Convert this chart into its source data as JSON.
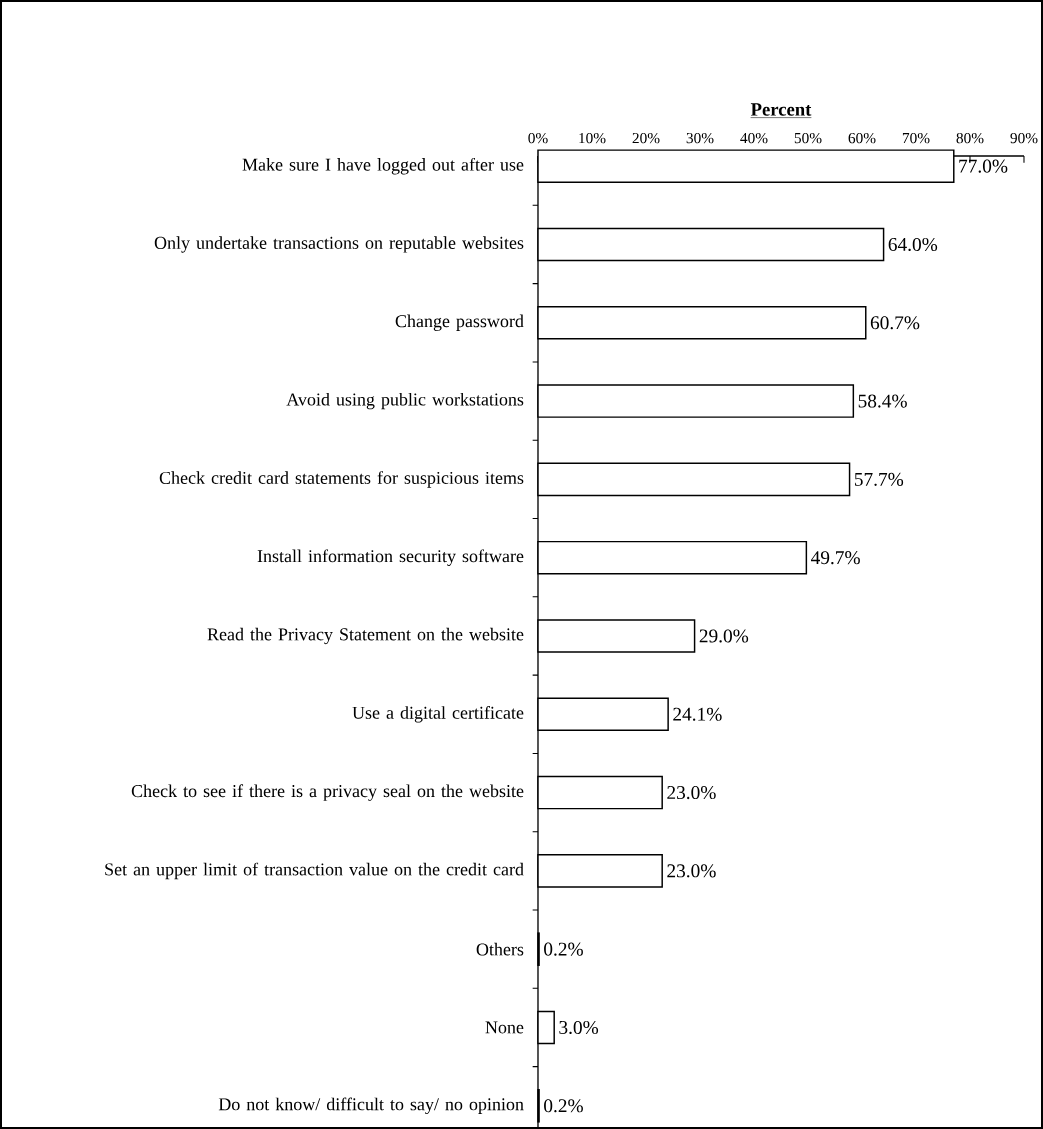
{
  "chart_data": {
    "type": "bar",
    "orientation": "horizontal",
    "xlabel": "**Percent**",
    "categories": [
      "Make sure I have logged out after use",
      "Only undertake transactions on reputable websites",
      "Change password",
      "Avoid using public workstations",
      "Check credit card statements for suspicious items",
      "Install information security software",
      "Read the Privacy Statement on the website",
      "Use a digital certificate",
      "Check to see if there is a privacy seal on the website",
      "Set an upper limit of transaction value on the credit card",
      "Others",
      "None",
      "Do not know/ difficult to say/ no opinion"
    ],
    "values": [
      77.0,
      64.0,
      60.7,
      58.4,
      57.7,
      49.7,
      29.0,
      24.1,
      23.0,
      23.0,
      0.2,
      3.0,
      0.2
    ],
    "value_labels": [
      "77.0%",
      "64.0%",
      "60.7%",
      "58.4%",
      "57.7%",
      "49.7%",
      "29.0%",
      "24.1%",
      "23.0%",
      "23.0%",
      "0.2%",
      "3.0%",
      "0.2%"
    ],
    "color": "#ffffff",
    "xlim": [
      0,
      90
    ],
    "xticks": [
      {
        "value": 0,
        "label": "0%"
      },
      {
        "value": 10,
        "label": "10%"
      },
      {
        "value": 20,
        "label": "20%"
      },
      {
        "value": 30,
        "label": "30%"
      },
      {
        "value": 40,
        "label": "40%"
      },
      {
        "value": 50,
        "label": "50%"
      },
      {
        "value": 60,
        "label": "60%"
      },
      {
        "value": 70,
        "label": "70%"
      },
      {
        "value": 80,
        "label": "80%"
      },
      {
        "value": 90,
        "label": "90%"
      }
    ]
  }
}
